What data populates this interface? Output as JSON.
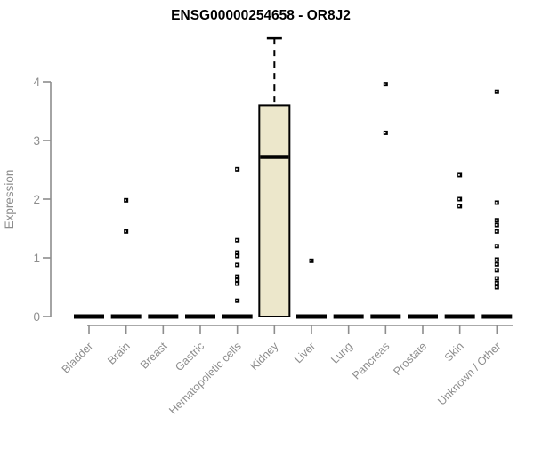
{
  "chart_data": {
    "type": "boxplot",
    "title": "ENSG00000254658 - OR8J2",
    "ylabel": "Expression",
    "xlabel": "",
    "yticks": [
      0,
      1,
      2,
      3,
      4
    ],
    "ylim": [
      0,
      4.9
    ],
    "grid": false,
    "legend": "none",
    "marker": "small-filled-square",
    "categories": [
      "Bladder",
      "Brain",
      "Breast",
      "Gastric",
      "Hematopoietic cells",
      "Kidney",
      "Liver",
      "Lung",
      "Pancreas",
      "Prostate",
      "Skin",
      "Unknown / Other"
    ],
    "boxes": [
      {
        "category": "Bladder",
        "min": 0,
        "q1": 0,
        "median": 0,
        "q3": 0,
        "max": 0,
        "outliers": []
      },
      {
        "category": "Brain",
        "min": 0,
        "q1": 0,
        "median": 0,
        "q3": 0,
        "max": 0,
        "outliers": [
          1.98,
          1.45
        ]
      },
      {
        "category": "Breast",
        "min": 0,
        "q1": 0,
        "median": 0,
        "q3": 0,
        "max": 0,
        "outliers": []
      },
      {
        "category": "Gastric",
        "min": 0,
        "q1": 0,
        "median": 0,
        "q3": 0,
        "max": 0,
        "outliers": []
      },
      {
        "category": "Hematopoietic cells",
        "min": 0,
        "q1": 0,
        "median": 0,
        "q3": 0,
        "max": 0,
        "outliers": [
          2.51,
          1.3,
          1.09,
          1.03,
          0.88,
          0.68,
          0.62,
          0.56,
          0.27
        ]
      },
      {
        "category": "Kidney",
        "min": 0,
        "q1": 0,
        "median": 2.72,
        "q3": 3.6,
        "max": 4.74,
        "outliers": []
      },
      {
        "category": "Liver",
        "min": 0,
        "q1": 0,
        "median": 0,
        "q3": 0,
        "max": 0,
        "outliers": [
          0.95
        ]
      },
      {
        "category": "Lung",
        "min": 0,
        "q1": 0,
        "median": 0,
        "q3": 0,
        "max": 0,
        "outliers": []
      },
      {
        "category": "Pancreas",
        "min": 0,
        "q1": 0,
        "median": 0,
        "q3": 0,
        "max": 0,
        "outliers": [
          3.96,
          3.13
        ]
      },
      {
        "category": "Prostate",
        "min": 0,
        "q1": 0,
        "median": 0,
        "q3": 0,
        "max": 0,
        "outliers": []
      },
      {
        "category": "Skin",
        "min": 0,
        "q1": 0,
        "median": 0,
        "q3": 0,
        "max": 0,
        "outliers": [
          2.41,
          2.0,
          1.88
        ]
      },
      {
        "category": "Unknown / Other",
        "min": 0,
        "q1": 0,
        "median": 0,
        "q3": 0,
        "max": 0,
        "outliers": [
          3.83,
          1.94,
          1.64,
          1.56,
          1.45,
          1.2,
          0.97,
          0.89,
          0.79,
          0.65,
          0.57,
          0.5
        ]
      }
    ],
    "colors": {
      "box_fill": "#ECE7CB",
      "box_border": "#000000",
      "median": "#000000",
      "zero_bar": "#000000",
      "outlier": "#000000",
      "axis": "#8D8D8D",
      "tick_label": "#8D8D8D",
      "title": "#000000"
    }
  }
}
